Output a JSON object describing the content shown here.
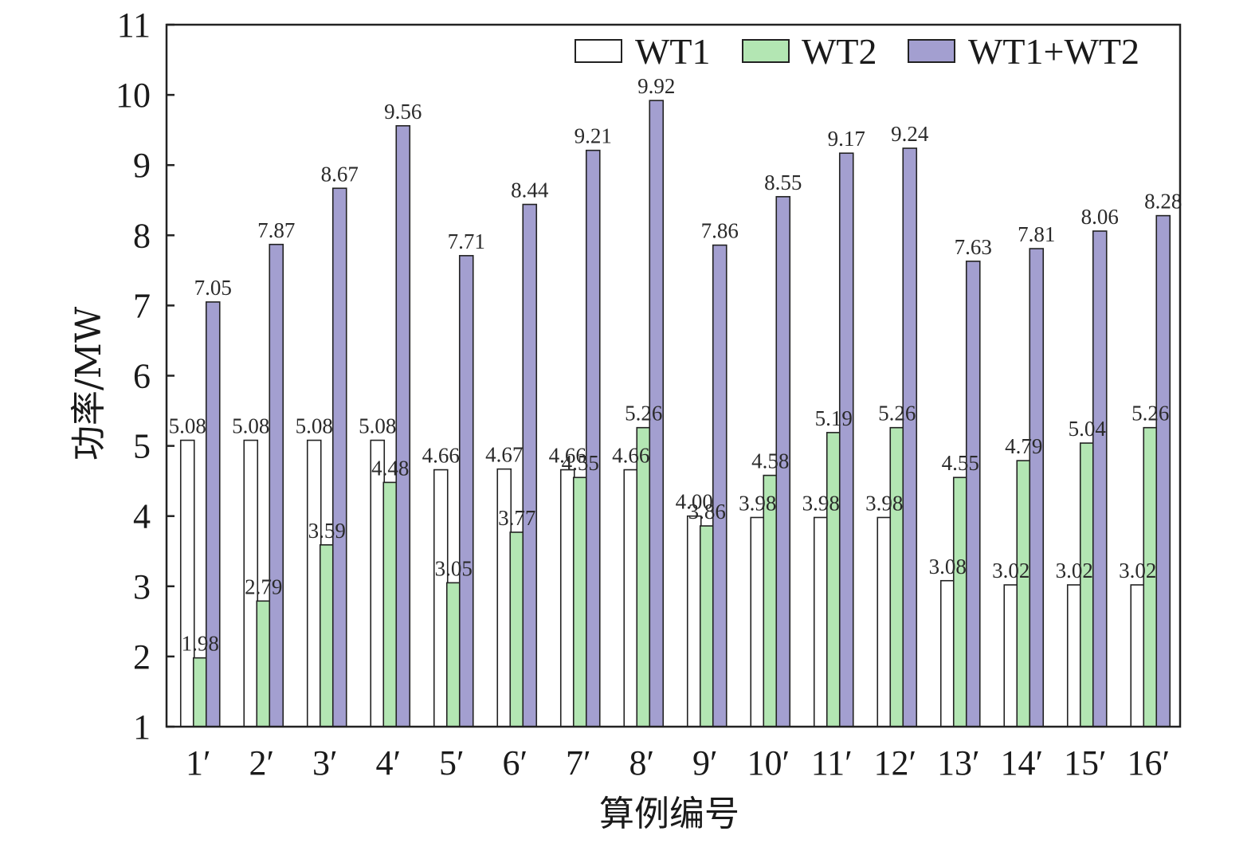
{
  "chart_data": {
    "type": "bar",
    "title": "",
    "xlabel": "算例编号",
    "ylabel": "功率/MW",
    "ylim": [
      1,
      11
    ],
    "yticks": [
      1,
      2,
      3,
      4,
      5,
      6,
      7,
      8,
      9,
      10,
      11
    ],
    "grid": false,
    "legend_position": "top-right",
    "categories": [
      "1′",
      "2′",
      "3′",
      "4′",
      "5′",
      "6′",
      "7′",
      "8′",
      "9′",
      "10′",
      "11′",
      "12′",
      "13′",
      "14′",
      "15′",
      "16′"
    ],
    "series": [
      {
        "name": "WT1",
        "color": "#ffffff",
        "values": [
          5.08,
          5.08,
          5.08,
          5.08,
          4.66,
          4.67,
          4.66,
          4.66,
          4.0,
          3.98,
          3.98,
          3.98,
          3.08,
          3.02,
          3.02,
          3.02
        ],
        "labels": [
          "5.08",
          "5.08",
          "5.08",
          "5.08",
          "4.66",
          "4.67",
          "4.66",
          "4.66",
          "4.00",
          "3.98",
          "3.98",
          "3.98",
          "3.08",
          "3.02",
          "3.02",
          "3.02"
        ]
      },
      {
        "name": "WT2",
        "color": "#b3e6b3",
        "values": [
          1.98,
          2.79,
          3.59,
          4.48,
          3.05,
          3.77,
          4.55,
          5.26,
          3.86,
          4.58,
          5.19,
          5.26,
          4.55,
          4.79,
          5.04,
          5.26
        ],
        "labels": [
          "1.98",
          "2.79",
          "3.59",
          "4.48",
          "3.05",
          "3.77",
          "4.55",
          "5.26",
          "3.86",
          "4.58",
          "5.19",
          "5.26",
          "4.55",
          "4.79",
          "5.04",
          "5.26"
        ]
      },
      {
        "name": "WT1+WT2",
        "color": "#a39fd0",
        "values": [
          7.05,
          7.87,
          8.67,
          9.56,
          7.71,
          8.44,
          9.21,
          9.92,
          7.86,
          8.55,
          9.17,
          9.24,
          7.63,
          7.81,
          8.06,
          8.28
        ],
        "labels": [
          "7.05",
          "7.87",
          "8.67",
          "9.56",
          "7.71",
          "8.44",
          "9.21",
          "9.92",
          "7.86",
          "8.55",
          "9.17",
          "9.24",
          "7.63",
          "7.81",
          "8.06",
          "8.28"
        ]
      }
    ]
  }
}
